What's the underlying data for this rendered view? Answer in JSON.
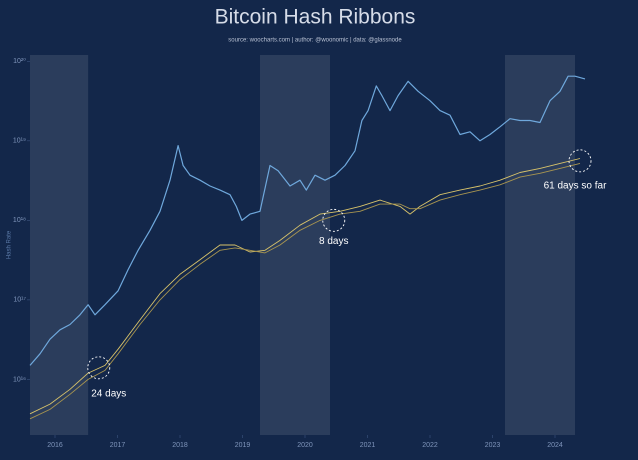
{
  "chart_data": {
    "type": "line",
    "title": "Bitcoin Hash Ribbons",
    "subtitle": "source: woocharts.com | author: @woonomic | data: @glassnode",
    "y_label": "Hash Rate",
    "log_scale": true,
    "xlim": [
      2015.6,
      2025.2
    ],
    "xticks": [
      2016,
      2017,
      2018,
      2019,
      2020,
      2021,
      2022,
      2023,
      2024
    ],
    "ylim": [
      2000000000000000.0,
      1.2e+20
    ],
    "yticks": [
      {
        "value": 1e+16,
        "label": "10¹⁶"
      },
      {
        "value": 1e+17,
        "label": "10¹⁷"
      },
      {
        "value": 1e+18,
        "label": "10¹⁸"
      },
      {
        "value": 1e+19,
        "label": "10¹⁹"
      },
      {
        "value": 1e+20,
        "label": "10²⁰"
      }
    ],
    "shaded_regions": [
      [
        2015.6,
        2016.53
      ],
      [
        2019.28,
        2020.4
      ],
      [
        2023.2,
        2024.32
      ]
    ],
    "series": [
      {
        "color": "#6fa8dc",
        "x": [
          2015.6,
          2015.76,
          2015.92,
          2016.08,
          2016.24,
          2016.4,
          2016.53,
          2016.64,
          2016.8,
          2017.01,
          2017.17,
          2017.33,
          2017.52,
          2017.68,
          2017.84,
          2017.97,
          2018.05,
          2018.16,
          2018.32,
          2018.48,
          2018.64,
          2018.8,
          2018.9,
          2018.99,
          2019.12,
          2019.28,
          2019.44,
          2019.57,
          2019.76,
          2019.92,
          2020.02,
          2020.16,
          2020.32,
          2020.48,
          2020.64,
          2020.8,
          2020.91,
          2021.01,
          2021.14,
          2021.23,
          2021.36,
          2021.49,
          2021.65,
          2021.81,
          2022.0,
          2022.16,
          2022.32,
          2022.48,
          2022.64,
          2022.8,
          2022.96,
          2023.12,
          2023.28,
          2023.44,
          2023.6,
          2023.76,
          2023.92,
          2024.08,
          2024.21,
          2024.32,
          2024.48
        ],
        "values": [
          1.5e+16,
          2.1e+16,
          3.2e+16,
          4.2e+16,
          4.9e+16,
          6.5e+16,
          8.7e+16,
          6.5e+16,
          8.7e+16,
          1.3e+17,
          2.4e+17,
          4.2e+17,
          7.5e+17,
          1.3e+18,
          3.2e+18,
          8.7e+18,
          4.9e+18,
          3.7e+18,
          3.2e+18,
          2.7e+18,
          2.4e+18,
          2.1e+18,
          1.5e+18,
          1e+18,
          1.2e+18,
          1.3e+18,
          4.9e+18,
          4.2e+18,
          2.7e+18,
          3.2e+18,
          2.4e+18,
          3.7e+18,
          3.2e+18,
          3.7e+18,
          4.9e+18,
          7.5e+18,
          1.8e+19,
          2.4e+19,
          4.9e+19,
          3.7e+19,
          2.4e+19,
          3.7e+19,
          5.6e+19,
          4.2e+19,
          3.2e+19,
          2.4e+19,
          2.1e+19,
          1.2e+19,
          1.3e+19,
          1e+19,
          1.2e+19,
          1.5e+19,
          1.9e+19,
          1.8e+19,
          1.8e+19,
          1.7e+19,
          3.2e+19,
          4.2e+19,
          6.5e+19,
          6.5e+19,
          6e+19
        ]
      },
      {
        "color": "#d8c36a",
        "x": [
          2015.6,
          2015.92,
          2016.24,
          2016.53,
          2016.8,
          2017.01,
          2017.36,
          2017.68,
          2018.0,
          2018.32,
          2018.64,
          2018.88,
          2019.12,
          2019.36,
          2019.6,
          2019.92,
          2020.24,
          2020.56,
          2020.88,
          2021.2,
          2021.52,
          2021.68,
          2021.84,
          2022.16,
          2022.48,
          2022.8,
          2023.12,
          2023.44,
          2023.76,
          2024.08,
          2024.4
        ],
        "values": [
          3700000000000000.0,
          4900000000000000.0,
          7500000000000000.0,
          1.2e+16,
          1.5e+16,
          2.4e+16,
          5.6e+16,
          1.2e+17,
          2.1e+17,
          3.2e+17,
          4.9e+17,
          4.9e+17,
          4e+17,
          4.2e+17,
          5.6e+17,
          8.7e+17,
          1.2e+18,
          1.3e+18,
          1.5e+18,
          1.8e+18,
          1.5e+18,
          1.2e+18,
          1.5e+18,
          2.1e+18,
          2.4e+18,
          2.7e+18,
          3.2e+18,
          4e+18,
          4.5e+18,
          5.2e+18,
          6e+18
        ]
      },
      {
        "color": "#a89550",
        "x": [
          2015.6,
          2015.92,
          2016.24,
          2016.53,
          2016.8,
          2017.01,
          2017.36,
          2017.68,
          2018.0,
          2018.32,
          2018.64,
          2018.88,
          2019.12,
          2019.36,
          2019.6,
          2019.92,
          2020.24,
          2020.56,
          2020.88,
          2021.2,
          2021.52,
          2021.68,
          2021.84,
          2022.16,
          2022.48,
          2022.8,
          2023.12,
          2023.44,
          2023.76,
          2024.08,
          2024.4
        ],
        "values": [
          3200000000000000.0,
          4200000000000000.0,
          6500000000000000.0,
          1e+16,
          1.3e+16,
          2.1e+16,
          4.9e+16,
          1e+17,
          1.8e+17,
          2.8e+17,
          4.2e+17,
          4.5e+17,
          4.2e+17,
          3.9e+17,
          4.9e+17,
          7.5e+17,
          1e+18,
          1.2e+18,
          1.3e+18,
          1.6e+18,
          1.6e+18,
          1.4e+18,
          1.4e+18,
          1.8e+18,
          2.1e+18,
          2.4e+18,
          2.8e+18,
          3.5e+18,
          3.9e+18,
          4.5e+18,
          5.2e+18
        ]
      }
    ],
    "annotations": [
      {
        "text": "24 days",
        "x": 2016.7,
        "y": 1.4e+16
      },
      {
        "text": "8 days",
        "x": 2020.46,
        "y": 1e+18
      },
      {
        "text": "61 days so far",
        "x": 2024.4,
        "y": 5.6e+18
      }
    ]
  }
}
